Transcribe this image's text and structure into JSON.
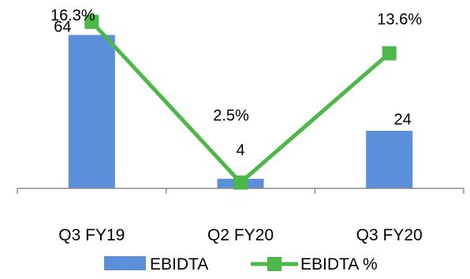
{
  "chart_data": {
    "type": "bar",
    "categories": [
      "Q3 FY19",
      "Q2 FY20",
      "Q3 FY20"
    ],
    "series": [
      {
        "name": "EBIDTA",
        "type": "bar",
        "axis": "primary",
        "color": "#5B8FD9",
        "values": [
          64,
          4,
          24
        ],
        "labels": [
          "64",
          "4",
          "24"
        ]
      },
      {
        "name": "EBIDTA %",
        "type": "line",
        "axis": "secondary",
        "color": "#4CB848",
        "marker": "square",
        "values": [
          16.3,
          2.5,
          13.6
        ],
        "labels": [
          "16.3%",
          "2.5%",
          "13.6%"
        ]
      }
    ],
    "primary_ylim": [
      0,
      72
    ],
    "secondary_ylim": [
      2,
      17.5
    ],
    "grid": false,
    "legend_position": "bottom",
    "title": "",
    "xlabel": "",
    "ylabel": ""
  }
}
